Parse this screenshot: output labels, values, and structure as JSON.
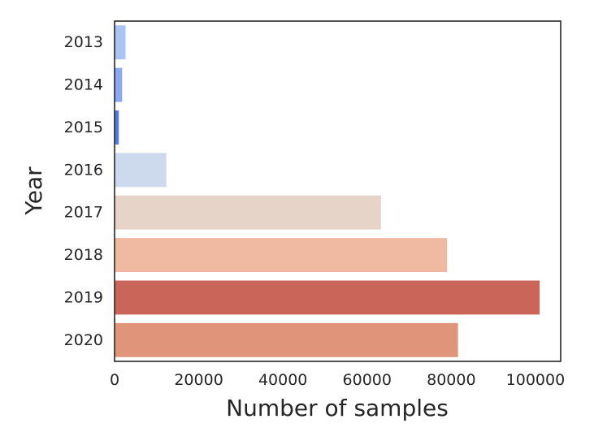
{
  "chart_data": {
    "type": "bar",
    "orientation": "horizontal",
    "categories": [
      "2013",
      "2014",
      "2015",
      "2016",
      "2017",
      "2018",
      "2019",
      "2020"
    ],
    "values": [
      2600,
      1800,
      1000,
      12300,
      63300,
      79000,
      101000,
      81600
    ],
    "bar_colors": [
      "#a9c4f5",
      "#8aa9f2",
      "#5977e3",
      "#cdd9ec",
      "#e6d4c9",
      "#f0b9a1",
      "#c96559",
      "#e0957b"
    ],
    "xlabel": "Number of samples",
    "ylabel": "Year",
    "xlim": [
      0,
      106000
    ],
    "xticks": [
      0,
      20000,
      40000,
      60000,
      80000,
      100000
    ],
    "grid": false,
    "legend": "none"
  }
}
